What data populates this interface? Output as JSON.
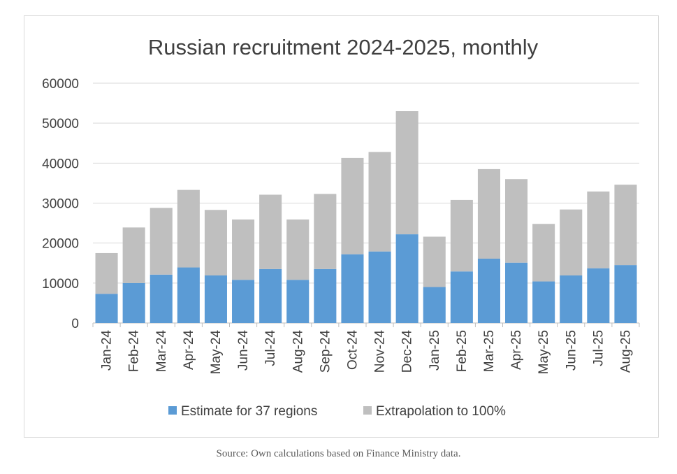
{
  "chart_data": {
    "type": "bar",
    "stacked": true,
    "title": "Russian recruitment 2024-2025, monthly",
    "categories": [
      "Jan-24",
      "Feb-24",
      "Mar-24",
      "Apr-24",
      "May-24",
      "Jun-24",
      "Jul-24",
      "Aug-24",
      "Sep-24",
      "Oct-24",
      "Nov-24",
      "Dec-24",
      "Jan-25",
      "Feb-25",
      "Mar-25",
      "Apr-25",
      "May-25",
      "Jun-25",
      "Jul-25",
      "Aug-25"
    ],
    "series": [
      {
        "name": "Estimate for 37 regions",
        "color": "#5b9bd5",
        "values": [
          7300,
          10000,
          12100,
          13900,
          11900,
          10800,
          13500,
          10800,
          13500,
          17200,
          17900,
          22200,
          9000,
          12900,
          16100,
          15100,
          10400,
          11900,
          13700,
          14500
        ]
      },
      {
        "name": "Extrapolation to 100%",
        "color": "#bfbfbf",
        "values": [
          10200,
          13900,
          16700,
          19400,
          16400,
          15100,
          18600,
          15100,
          18800,
          24100,
          24900,
          30800,
          12600,
          17900,
          22400,
          20900,
          14400,
          16500,
          19200,
          20100
        ]
      }
    ],
    "ylim": [
      0,
      60000
    ],
    "yticks": [
      "0",
      "10000",
      "20000",
      "30000",
      "40000",
      "50000",
      "60000"
    ],
    "grid": true,
    "legend": "bottom"
  },
  "source_note": "Source: Own calculations based on Finance Ministry data."
}
